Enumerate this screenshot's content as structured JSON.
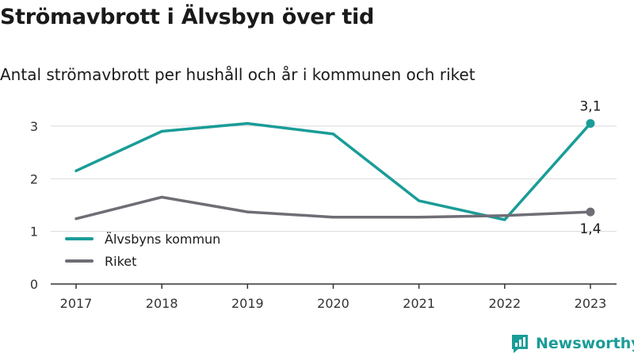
{
  "chart_data": {
    "type": "line",
    "title": "Strömavbrott i Älvsbyn över tid",
    "subtitle": "Antal strömavbrott per hushåll och år i kommunen och riket",
    "x": [
      "2017",
      "2018",
      "2019",
      "2020",
      "2021",
      "2022",
      "2023"
    ],
    "ylim": [
      0,
      3.3
    ],
    "yticks": [
      0,
      1,
      2,
      3
    ],
    "grid": true,
    "legend_position": "bottom-left",
    "series": [
      {
        "name": "Älvsbyns kommun",
        "color": "#1a9c98",
        "values": [
          2.15,
          2.9,
          3.05,
          2.85,
          1.58,
          1.22,
          3.05
        ],
        "end_label": "3,1"
      },
      {
        "name": "Riket",
        "color": "#6e6e76",
        "values": [
          1.24,
          1.65,
          1.37,
          1.27,
          1.27,
          1.3,
          1.37
        ],
        "end_label": "1,4"
      }
    ]
  },
  "brand": {
    "name": "Newsworthy",
    "icon": "newsworthy-logo-icon",
    "color": "#1a9c98"
  }
}
